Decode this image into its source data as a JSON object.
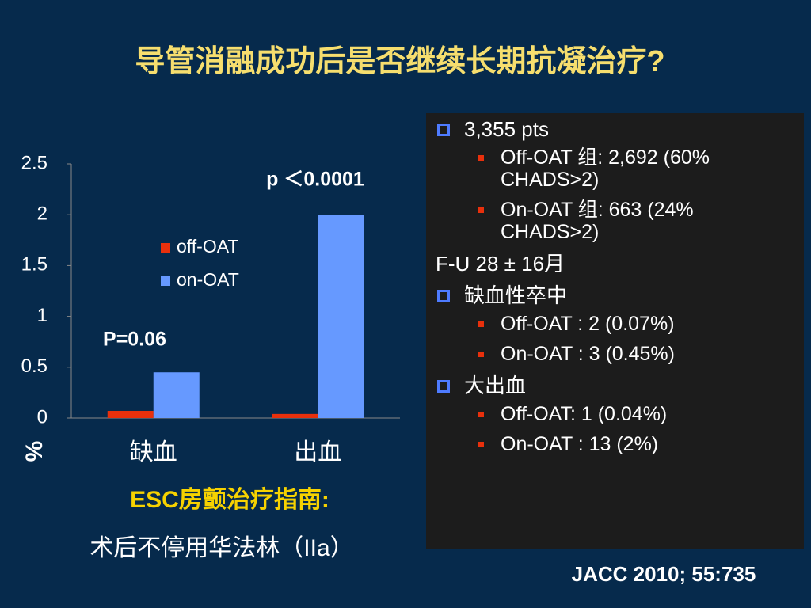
{
  "slide_title": "导管消融成功后是否继续长期抗凝治疗?",
  "chart_data": {
    "type": "bar",
    "y_label": "%",
    "categories": [
      "缺血",
      "出血"
    ],
    "series": [
      {
        "name": "off-OAT",
        "color": "#e8300c",
        "values": [
          0.07,
          0.04
        ]
      },
      {
        "name": "on-OAT",
        "color": "#6699ff",
        "values": [
          0.45,
          2
        ]
      }
    ],
    "ylim": [
      0,
      2.5
    ],
    "yticks": [
      0,
      0.5,
      1,
      1.5,
      2,
      2.5
    ],
    "annotations": [
      "P=0.06",
      "p ＜0.0001"
    ]
  },
  "guideline": {
    "title": "ESC房颤治疗指南:",
    "text": "术后不停用华法林（IIa）"
  },
  "panel": [
    {
      "heading": "3,355 pts",
      "items": [
        "Off-OAT 组: 2,692 (60% CHADS>2)",
        "On-OAT 组: 663 (24% CHADS>2)"
      ]
    },
    {
      "note": "F-U 28 ± 16月"
    },
    {
      "heading": "缺血性卒中",
      "items": [
        "Off-OAT : 2 (0.07%)",
        "On-OAT :  3 (0.45%)"
      ]
    },
    {
      "heading": "大出血",
      "items": [
        "Off-OAT: 1 (0.04%)",
        " On-OAT : 13 (2%)"
      ]
    }
  ],
  "citation": "JACC 2010; 55:735"
}
